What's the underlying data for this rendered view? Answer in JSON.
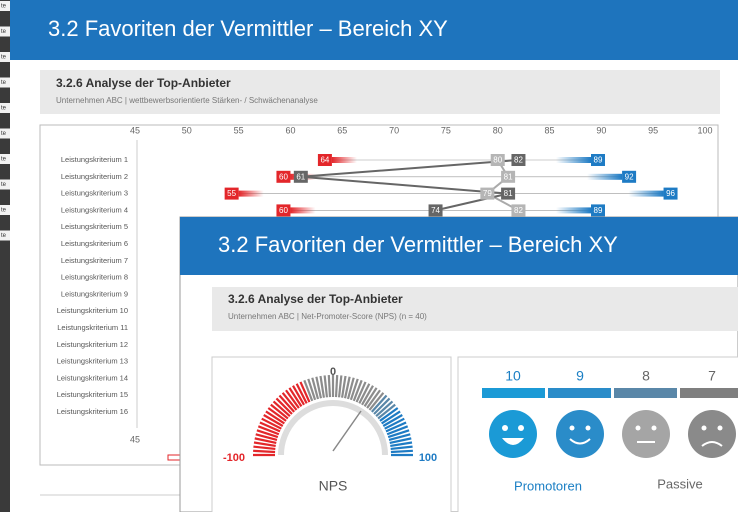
{
  "left_tabs": [
    "te",
    "te",
    "te",
    "te",
    "te",
    "te",
    "te",
    "te",
    "te",
    "te"
  ],
  "back_slide": {
    "title": "3.2 Favoriten der Vermittler – Bereich XY",
    "section": "3.2.6 Analyse der Top-Anbieter",
    "subtitle": "Unternehmen ABC | wettbewerbsorientierte Stärken- / Schwächenanalyse",
    "axis_ticks": [
      45,
      50,
      55,
      60,
      65,
      70,
      75,
      80,
      85,
      90,
      95,
      100
    ],
    "bottom_tick": 45,
    "criteria": [
      "Leistungskriterium 1",
      "Leistungskriterium 2",
      "Leistungskriterium 3",
      "Leistungskriterium 4",
      "Leistungskriterium 5",
      "Leistungskriterium 6",
      "Leistungskriterium 7",
      "Leistungskriterium 8",
      "Leistungskriterium 9",
      "Leistungskriterium 10",
      "Leistungskriterium 11",
      "Leistungskriterium 12",
      "Leistungskriterium 13",
      "Leistungskriterium 14",
      "Leistungskriterium 15",
      "Leistungskriterium 16"
    ],
    "rows": [
      {
        "min": 64,
        "light": 80,
        "dark": 82,
        "max": 89
      },
      {
        "min": 60,
        "light": 81,
        "dark": 61,
        "max": 92
      },
      {
        "min": 55,
        "light": 79,
        "dark": 81,
        "max": 96
      },
      {
        "min": 60,
        "light": 82,
        "dark": 74,
        "max": 89
      }
    ]
  },
  "front_slide": {
    "title": "3.2 Favoriten der Vermittler – Bereich XY",
    "section": "3.2.6 Analyse der Top-Anbieter",
    "subtitle": "Unternehmen ABC | Net-Promoter-Score (NPS) (n = 40)",
    "gauge": {
      "min_label": "-100",
      "mid_label": "0",
      "max_label": "100",
      "caption": "NPS"
    },
    "scores": [
      "10",
      "9",
      "8",
      "7"
    ],
    "groups": [
      "Promotoren",
      "Passive"
    ]
  }
}
